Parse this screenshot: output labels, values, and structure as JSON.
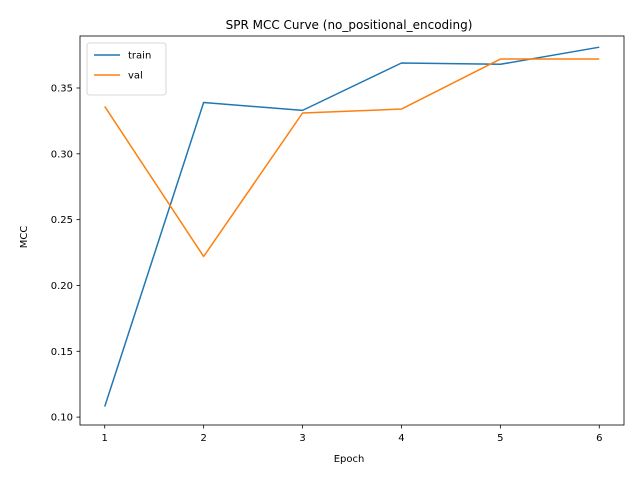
{
  "chart_data": {
    "type": "line",
    "title": "SPR MCC Curve (no_positional_encoding)",
    "xlabel": "Epoch",
    "ylabel": "MCC",
    "x": [
      1,
      2,
      3,
      4,
      5,
      6
    ],
    "xticks": [
      "1",
      "2",
      "3",
      "4",
      "5",
      "6"
    ],
    "yticks": [
      "0.10",
      "0.15",
      "0.20",
      "0.25",
      "0.30",
      "0.35"
    ],
    "xlim": [
      0.75,
      6.25
    ],
    "ylim": [
      0.094,
      0.3895
    ],
    "grid": false,
    "legend_position": "top-left",
    "series": [
      {
        "name": "train",
        "color": "#1f77b4",
        "values": [
          0.108,
          0.339,
          0.333,
          0.369,
          0.368,
          0.381
        ]
      },
      {
        "name": "val",
        "color": "#ff7f0e",
        "values": [
          0.336,
          0.222,
          0.331,
          0.334,
          0.372,
          0.372
        ]
      }
    ]
  }
}
